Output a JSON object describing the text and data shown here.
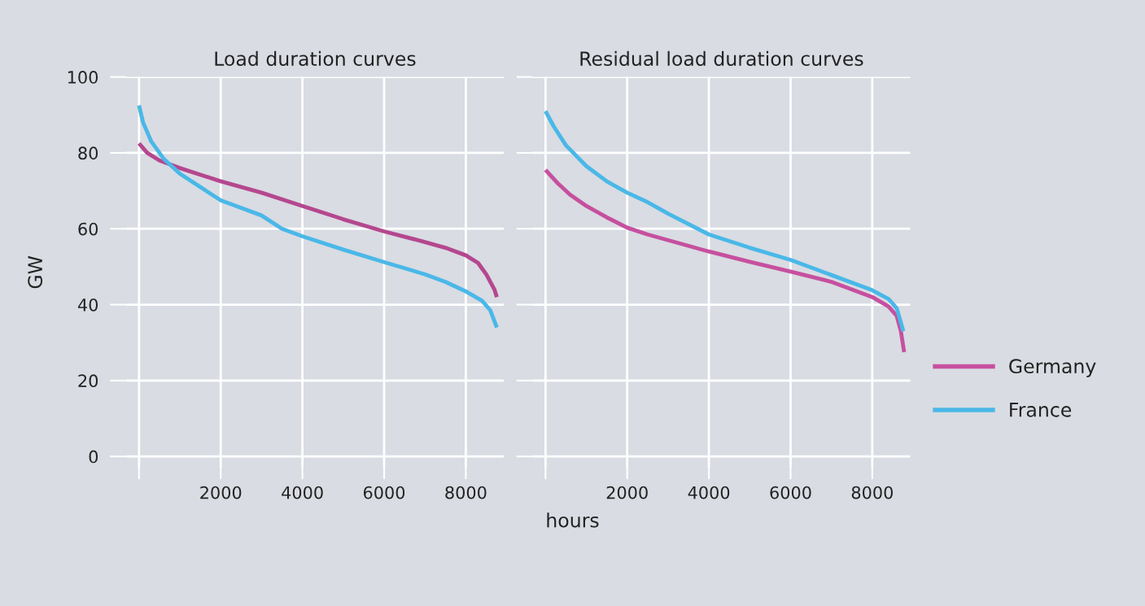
{
  "chart_data": [
    {
      "type": "line",
      "title": "Load duration curves",
      "ylabel": "GW",
      "xlim": [
        -320,
        8930
      ],
      "ylim": [
        -3,
        100
      ],
      "xticks": [
        {
          "value": 0,
          "label": null
        },
        2000,
        4000,
        6000,
        8000
      ],
      "yticks": [
        0,
        20,
        40,
        60,
        80,
        100
      ],
      "grid": true,
      "series": [
        {
          "color": "#b5478f",
          "x": [
            0,
            200,
            500,
            1000,
            2000,
            3000,
            4000,
            5000,
            6000,
            7000,
            7500,
            8000,
            8300,
            8500,
            8700,
            8760
          ],
          "values": [
            82.5,
            80,
            78,
            76,
            72.5,
            69.5,
            66,
            62.5,
            59.3,
            56.5,
            55,
            53,
            51,
            48,
            44,
            42
          ]
        },
        {
          "color": "#4ab8e8",
          "x": [
            0,
            100,
            300,
            600,
            1000,
            1500,
            2000,
            3000,
            3500,
            4000,
            5000,
            6000,
            7000,
            7500,
            8000,
            8400,
            8600,
            8760
          ],
          "values": [
            92.5,
            88,
            83,
            78.5,
            74.5,
            71,
            67.5,
            63.5,
            60,
            58,
            54.5,
            51.2,
            48,
            46,
            43.5,
            41,
            38.5,
            34
          ]
        }
      ]
    },
    {
      "type": "line",
      "title": "Residual load duration curves",
      "xlabel": "hours",
      "xlim": [
        -320,
        8930
      ],
      "ylim": [
        -3,
        100
      ],
      "xticks": [
        {
          "value": 0,
          "label": null
        },
        2000,
        4000,
        6000,
        8000
      ],
      "yticks": [
        {
          "value": 0,
          "label": null
        },
        {
          "value": 20,
          "label": null
        },
        {
          "value": 40,
          "label": null
        },
        {
          "value": 60,
          "label": null
        },
        {
          "value": 80,
          "label": null
        },
        {
          "value": 100,
          "label": null
        }
      ],
      "tick_labels": "x",
      "grid": true,
      "legend": "right",
      "series": [
        {
          "name": "Germany",
          "color": "#c6509f",
          "x": [
            0,
            300,
            600,
            1000,
            1500,
            2000,
            2500,
            3000,
            4000,
            5000,
            6000,
            7000,
            8000,
            8400,
            8600,
            8700,
            8780
          ],
          "values": [
            75.5,
            72,
            69,
            66,
            63,
            60.3,
            58.5,
            57,
            54,
            51.3,
            48.7,
            46,
            42,
            39.5,
            37,
            33,
            27.5
          ]
        },
        {
          "name": "France",
          "color": "#4ab8e8",
          "x": [
            0,
            200,
            500,
            1000,
            1500,
            2000,
            2500,
            3000,
            4000,
            5000,
            6000,
            7000,
            8000,
            8400,
            8600,
            8760
          ],
          "values": [
            91,
            87,
            82,
            76.5,
            72.5,
            69.5,
            67,
            64,
            58.5,
            55,
            51.8,
            47.8,
            43.8,
            41.5,
            39,
            33
          ]
        }
      ]
    }
  ]
}
